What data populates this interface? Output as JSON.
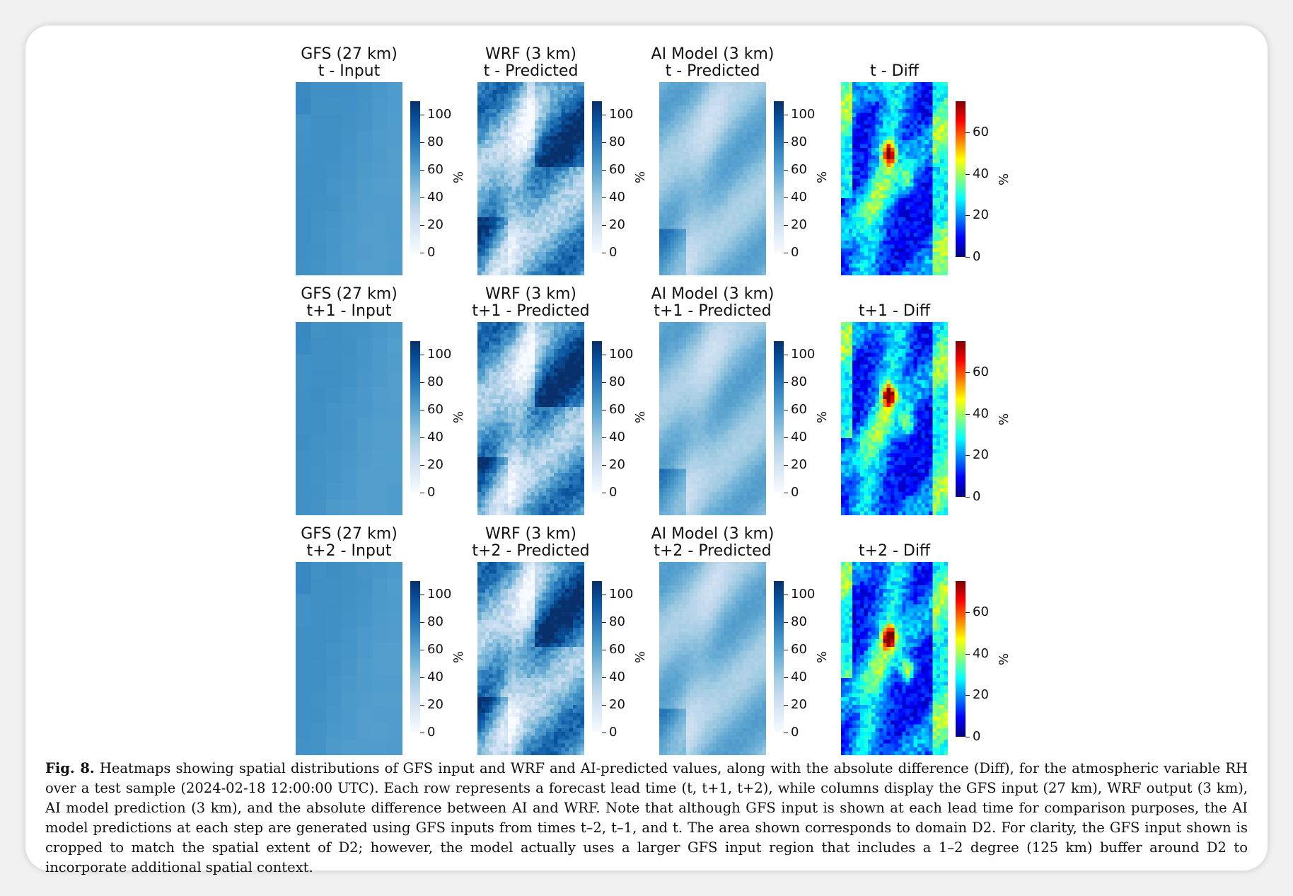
{
  "figure": {
    "caption_label": "Fig. 8.",
    "caption_text": "Heatmaps showing spatial distributions of GFS input and WRF and AI-predicted values, along with the absolute difference (Diff), for the atmospheric variable RH over a test sample (2024-02-18 12:00:00 UTC). Each row represents a forecast lead time (t, t+1, t+2), while columns display the GFS input (27 km), WRF output (3 km), AI model prediction (3 km), and the absolute difference between AI and WRF. Note that although GFS input is shown at each lead time for comparison purposes, the AI model predictions at each step are generated using GFS inputs from times t–2, t–1, and t. The area shown corresponds to domain D2. For clarity, the GFS input shown is cropped to match the spatial extent of D2; however, the model actually uses a larger GFS input region that includes a 1–2 degree (125 km) buffer around D2 to incorporate additional spatial context."
  },
  "colors": {
    "blues": [
      "#f7fbff",
      "#deebf7",
      "#c6dbef",
      "#9ecae1",
      "#6baed6",
      "#4292c6",
      "#2171b5",
      "#08519c",
      "#08306b"
    ],
    "jet": [
      "#00007f",
      "#0000ff",
      "#007fff",
      "#00ffff",
      "#7fff7f",
      "#ffff00",
      "#ff7f00",
      "#ff0000",
      "#7f0000"
    ]
  },
  "chart_data": [
    {
      "type": "heatmap",
      "row": 0,
      "col": 0,
      "title_line1": "GFS (27 km)",
      "title_line2": "t - Input",
      "colormap": "Blues",
      "vmin": 0,
      "vmax": 110,
      "cbar_ticks": [
        "100",
        "80",
        "60",
        "40",
        "20",
        "0"
      ],
      "unit": "%"
    },
    {
      "type": "heatmap",
      "row": 0,
      "col": 1,
      "title_line1": "WRF (3 km)",
      "title_line2": "t - Predicted",
      "colormap": "Blues",
      "vmin": 0,
      "vmax": 110,
      "cbar_ticks": [
        "100",
        "80",
        "60",
        "40",
        "20",
        "0"
      ],
      "unit": "%"
    },
    {
      "type": "heatmap",
      "row": 0,
      "col": 2,
      "title_line1": "AI Model (3 km)",
      "title_line2": "t - Predicted",
      "colormap": "Blues",
      "vmin": 0,
      "vmax": 110,
      "cbar_ticks": [
        "100",
        "80",
        "60",
        "40",
        "20",
        "0"
      ],
      "unit": "%"
    },
    {
      "type": "heatmap",
      "row": 0,
      "col": 3,
      "title_line1": "",
      "title_line2": "t - Diff",
      "colormap": "jet",
      "vmin": 0,
      "vmax": 75,
      "cbar_ticks": [
        "60",
        "40",
        "20",
        "0"
      ],
      "unit": "%"
    },
    {
      "type": "heatmap",
      "row": 1,
      "col": 0,
      "title_line1": "GFS (27 km)",
      "title_line2": "t+1 - Input",
      "colormap": "Blues",
      "vmin": 0,
      "vmax": 110,
      "cbar_ticks": [
        "100",
        "80",
        "60",
        "40",
        "20",
        "0"
      ],
      "unit": "%"
    },
    {
      "type": "heatmap",
      "row": 1,
      "col": 1,
      "title_line1": "WRF (3 km)",
      "title_line2": "t+1 - Predicted",
      "colormap": "Blues",
      "vmin": 0,
      "vmax": 110,
      "cbar_ticks": [
        "100",
        "80",
        "60",
        "40",
        "20",
        "0"
      ],
      "unit": "%"
    },
    {
      "type": "heatmap",
      "row": 1,
      "col": 2,
      "title_line1": "AI Model (3 km)",
      "title_line2": "t+1 - Predicted",
      "colormap": "Blues",
      "vmin": 0,
      "vmax": 110,
      "cbar_ticks": [
        "100",
        "80",
        "60",
        "40",
        "20",
        "0"
      ],
      "unit": "%"
    },
    {
      "type": "heatmap",
      "row": 1,
      "col": 3,
      "title_line1": "",
      "title_line2": "t+1 - Diff",
      "colormap": "jet",
      "vmin": 0,
      "vmax": 75,
      "cbar_ticks": [
        "60",
        "40",
        "20",
        "0"
      ],
      "unit": "%"
    },
    {
      "type": "heatmap",
      "row": 2,
      "col": 0,
      "title_line1": "GFS (27 km)",
      "title_line2": "t+2 - Input",
      "colormap": "Blues",
      "vmin": 0,
      "vmax": 110,
      "cbar_ticks": [
        "100",
        "80",
        "60",
        "40",
        "20",
        "0"
      ],
      "unit": "%"
    },
    {
      "type": "heatmap",
      "row": 2,
      "col": 1,
      "title_line1": "WRF (3 km)",
      "title_line2": "t+2 - Predicted",
      "colormap": "Blues",
      "vmin": 0,
      "vmax": 110,
      "cbar_ticks": [
        "100",
        "80",
        "60",
        "40",
        "20",
        "0"
      ],
      "unit": "%"
    },
    {
      "type": "heatmap",
      "row": 2,
      "col": 2,
      "title_line1": "AI Model (3 km)",
      "title_line2": "t+2 - Predicted",
      "colormap": "Blues",
      "vmin": 0,
      "vmax": 110,
      "cbar_ticks": [
        "100",
        "80",
        "60",
        "40",
        "20",
        "0"
      ],
      "unit": "%"
    },
    {
      "type": "heatmap",
      "row": 2,
      "col": 3,
      "title_line1": "",
      "title_line2": "t+2 - Diff",
      "colormap": "jet",
      "vmin": 0,
      "vmax": 75,
      "cbar_ticks": [
        "60",
        "40",
        "20",
        "0"
      ],
      "unit": "%"
    }
  ]
}
